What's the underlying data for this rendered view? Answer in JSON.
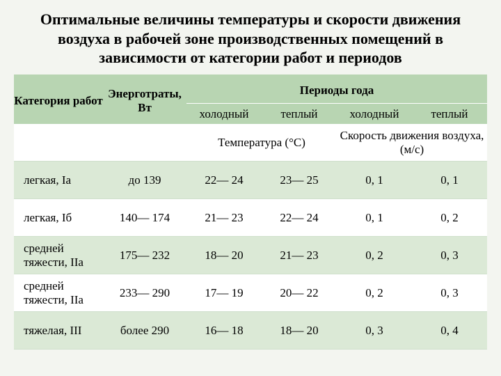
{
  "title": "Оптимальные величины температуры и скорости движения воздуха в рабочей зоне производственных помещений в зависимости от категории работ и периодов",
  "headers": {
    "category": "Категория работ",
    "energy": "Энерготраты, Вт",
    "periods": "Периоды года",
    "cold": "холодный",
    "warm": "теплый",
    "temperature": "Температура (°C)",
    "velocity": "Скорость движения воздуха, (м/с)"
  },
  "rows": [
    {
      "category": "легкая, Iа",
      "energy": "до 139",
      "t_cold": "22— 24",
      "t_warm": "23— 25",
      "v_cold": "0, 1",
      "v_warm": "0, 1"
    },
    {
      "category": "легкая, Iб",
      "energy": "140— 174",
      "t_cold": "21— 23",
      "t_warm": "22— 24",
      "v_cold": "0, 1",
      "v_warm": "0, 2"
    },
    {
      "category": "средней тяжести, IIа",
      "energy": "175— 232",
      "t_cold": "18— 20",
      "t_warm": "21— 23",
      "v_cold": "0, 2",
      "v_warm": "0, 3"
    },
    {
      "category": "средней тяжести, IIа",
      "energy": "233— 290",
      "t_cold": "17— 19",
      "t_warm": "20— 22",
      "v_cold": "0, 2",
      "v_warm": "0, 3"
    },
    {
      "category": "тяжелая, III",
      "energy": "более 290",
      "t_cold": "16— 18",
      "t_warm": "18— 20",
      "v_cold": "0, 3",
      "v_warm": "0, 4"
    }
  ],
  "style": {
    "header_bg": "#b8d5b2",
    "alt_bg": "#dbe9d6",
    "plain_bg": "#ffffff",
    "page_bg": "#f3f5f0"
  }
}
